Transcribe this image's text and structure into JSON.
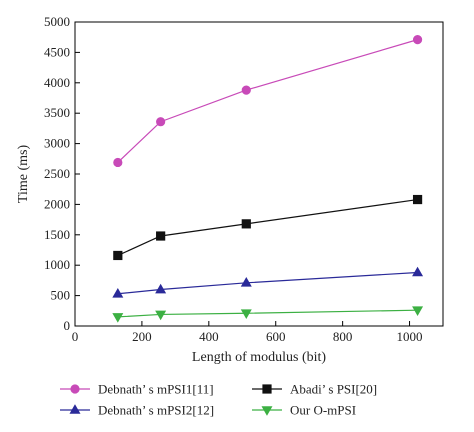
{
  "chart_data": {
    "type": "line",
    "title": "",
    "xlabel": "Length of modulus (bit)",
    "ylabel": "Time (ms)",
    "xlim": [
      0,
      1100
    ],
    "ylim": [
      0,
      5000
    ],
    "xticks": [
      0,
      200,
      400,
      600,
      800,
      1000
    ],
    "yticks": [
      0,
      500,
      1000,
      1500,
      2000,
      2500,
      3000,
      3500,
      4000,
      4500,
      5000
    ],
    "x": [
      128,
      256,
      512,
      1024
    ],
    "grid": false,
    "legend_position": "bottom",
    "series": [
      {
        "name": "Debnath’ s mPSI1[11]",
        "values": [
          2690,
          3360,
          3880,
          4710
        ],
        "color": "#c84ab8",
        "marker": "circle"
      },
      {
        "name": "Abadi’ s PSI[20]",
        "values": [
          1160,
          1480,
          1680,
          2080
        ],
        "color": "#111111",
        "marker": "square"
      },
      {
        "name": "Debnath’ s mPSI2[12]",
        "values": [
          530,
          600,
          710,
          880
        ],
        "color": "#2a2a99",
        "marker": "triangle-up"
      },
      {
        "name": "Our O-mPSI",
        "values": [
          150,
          190,
          210,
          260
        ],
        "color": "#3cb043",
        "marker": "triangle-down"
      }
    ]
  }
}
